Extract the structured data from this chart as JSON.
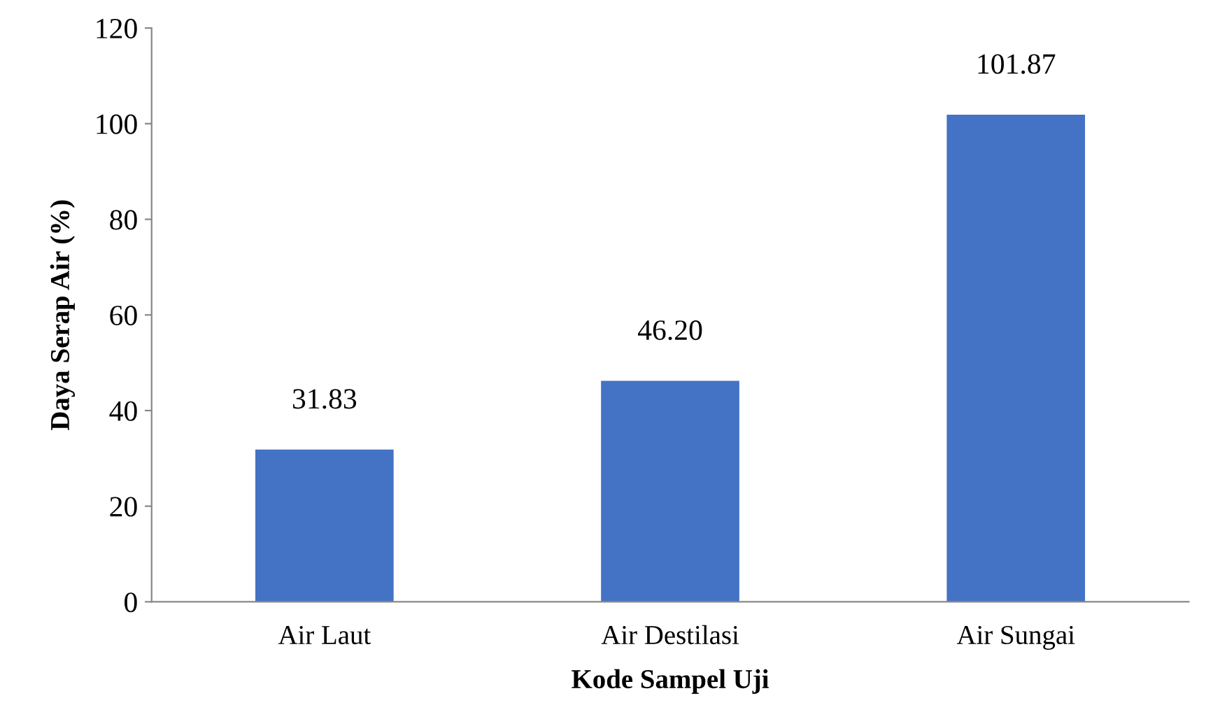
{
  "chart_data": {
    "type": "bar",
    "xlabel": "Kode Sampel Uji",
    "ylabel": "Daya Serap Air (%)",
    "categories": [
      "Air Laut",
      "Air Destilasi",
      "Air Sungai"
    ],
    "values": [
      31.83,
      46.2,
      101.87
    ],
    "value_labels": [
      "31.83",
      "46.20",
      "101.87"
    ],
    "color": "#4472c4",
    "ylim": [
      0,
      120
    ],
    "yticks": [
      0,
      20,
      40,
      60,
      80,
      100,
      120
    ],
    "grid": false,
    "legend": false
  }
}
